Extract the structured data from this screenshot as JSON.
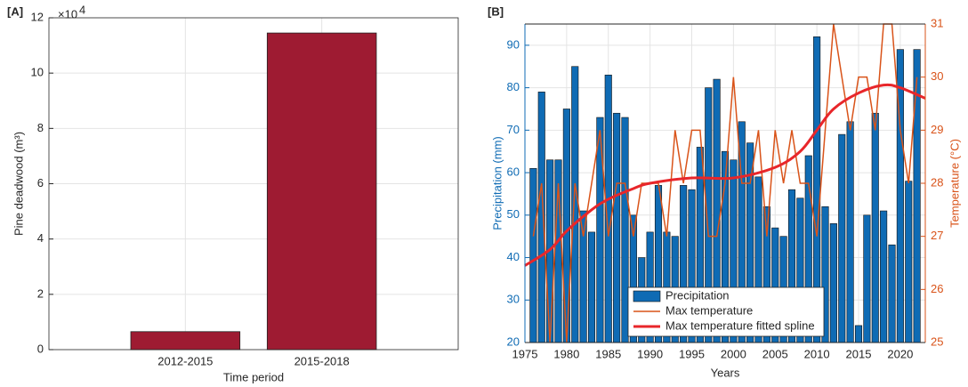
{
  "chart_data": [
    {
      "type": "bar",
      "panel_label": "[A]",
      "xlabel": "Time period",
      "ylabel": "Pine deadwood (m³)",
      "y_exponent": {
        "base": "×10",
        "power": "4"
      },
      "categories": [
        "2012-2015",
        "2015-2018"
      ],
      "values": [
        0.65,
        11.45
      ],
      "color": "#9e1b32",
      "ylim": [
        0,
        12
      ],
      "yticks": [
        0,
        2,
        4,
        6,
        8,
        10,
        12
      ],
      "grid": true
    },
    {
      "type": "bar_line",
      "panel_label": "[B]",
      "xlabel": "Years",
      "ylabel": "Precipitation (mm)",
      "y2label": "Temperature (°C)",
      "x": [
        1976,
        1977,
        1978,
        1979,
        1980,
        1981,
        1982,
        1983,
        1984,
        1985,
        1986,
        1987,
        1988,
        1989,
        1990,
        1991,
        1992,
        1993,
        1994,
        1995,
        1996,
        1997,
        1998,
        1999,
        2000,
        2001,
        2002,
        2003,
        2004,
        2005,
        2006,
        2007,
        2008,
        2009,
        2010,
        2011,
        2012,
        2013,
        2014,
        2015,
        2016,
        2017,
        2018,
        2019,
        2020,
        2021,
        2022
      ],
      "xlim": [
        1975,
        2023
      ],
      "xticks": [
        1975,
        1980,
        1985,
        1990,
        1995,
        2000,
        2005,
        2010,
        2015,
        2020
      ],
      "ylim": [
        20,
        95
      ],
      "yticks": [
        20,
        30,
        40,
        50,
        60,
        70,
        80,
        90
      ],
      "y2lim": [
        25,
        31
      ],
      "y2ticks": [
        25,
        26,
        27,
        28,
        29,
        30,
        31
      ],
      "grid": true,
      "legend": "bottom-center",
      "series": [
        {
          "name": "Precipitation",
          "color": "#0f6bb4",
          "kind": "bar",
          "values": [
            61,
            79,
            63,
            63,
            75,
            85,
            51,
            46,
            73,
            83,
            74,
            73,
            50,
            40,
            46,
            57,
            46,
            45,
            57,
            56,
            66,
            80,
            82,
            65,
            63,
            72,
            67,
            59,
            52,
            47,
            45,
            56,
            54,
            64,
            92,
            52,
            48,
            69,
            72,
            24,
            50,
            74,
            51,
            43,
            89,
            58,
            89
          ]
        },
        {
          "name": "Max temperature",
          "color": "#d95319",
          "kind": "line",
          "axis": "y2",
          "values": [
            27,
            28,
            25,
            28,
            25,
            28,
            27,
            28,
            29,
            27,
            28,
            28,
            27,
            28,
            28,
            28,
            27,
            29,
            28,
            29,
            29,
            27,
            27,
            28,
            30,
            28,
            28,
            29,
            27,
            29,
            28,
            29,
            28,
            28,
            27,
            29,
            31,
            30,
            29,
            30,
            30,
            29,
            31,
            31,
            29,
            28,
            30
          ]
        },
        {
          "name": "Max temperature fitted spline",
          "color": "#e8262a",
          "kind": "spline",
          "axis": "y2",
          "x": [
            1975,
            1978,
            1980,
            1983,
            1985,
            1988,
            1990,
            1995,
            2000,
            2005,
            2008,
            2010,
            2012,
            2015,
            2018,
            2020,
            2023
          ],
          "values": [
            26.45,
            26.75,
            27.1,
            27.5,
            27.7,
            27.9,
            28.0,
            28.1,
            28.1,
            28.3,
            28.6,
            29.0,
            29.4,
            29.7,
            29.85,
            29.8,
            29.6
          ]
        }
      ]
    }
  ]
}
